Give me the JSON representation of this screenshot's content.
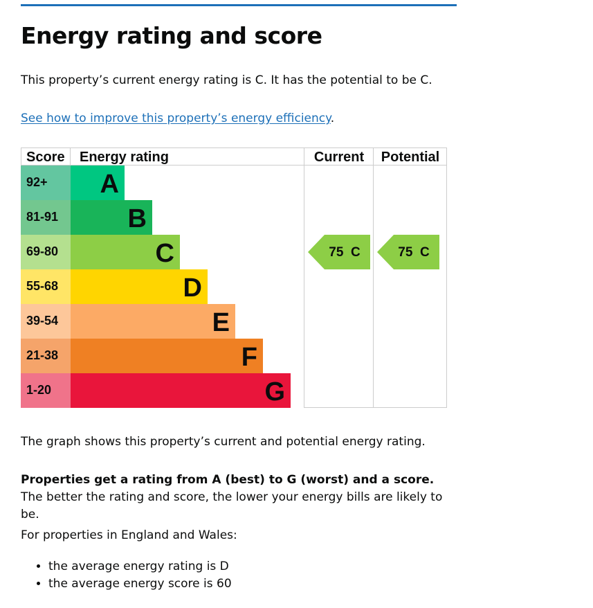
{
  "page": {
    "title": "Energy rating and score",
    "intro": "This property’s current energy rating is C. It has the potential to be C.",
    "improve_link": "See how to improve this property’s energy efficiency",
    "improve_link_suffix": ".",
    "graph_caption": "The graph shows this property’s current and potential energy rating.",
    "rating_bold": "Properties get a rating from A (best) to G (worst) and a score.",
    "rating_rest": " The better the rating and score, the lower your energy bills are likely to be.",
    "england_wales": "For properties in England and Wales:",
    "bullets": [
      "the average energy rating is D",
      "the average energy score is 60"
    ]
  },
  "chart_data": {
    "type": "table",
    "headers": {
      "score": "Score",
      "rating": "Energy rating",
      "current": "Current",
      "potential": "Potential"
    },
    "bands": [
      {
        "letter": "A",
        "range": "92+",
        "color": "#00c781",
        "score_bg": "#63c6a0"
      },
      {
        "letter": "B",
        "range": "81-91",
        "color": "#19b459",
        "score_bg": "#73c78f"
      },
      {
        "letter": "C",
        "range": "69-80",
        "color": "#8dce46",
        "score_bg": "#b4e08f"
      },
      {
        "letter": "D",
        "range": "55-68",
        "color": "#ffd500",
        "score_bg": "#ffe566"
      },
      {
        "letter": "E",
        "range": "39-54",
        "color": "#fcaa65",
        "score_bg": "#fdc79a"
      },
      {
        "letter": "F",
        "range": "21-38",
        "color": "#ef8023",
        "score_bg": "#f5a46a"
      },
      {
        "letter": "G",
        "range": "1-20",
        "color": "#e9153b",
        "score_bg": "#f0738a"
      }
    ],
    "current": {
      "score": 75,
      "letter": "C",
      "label": "75  C"
    },
    "potential": {
      "score": 75,
      "letter": "C",
      "label": "75  C"
    },
    "arrow_color": "#8dce46",
    "grid_color": "#cccccc"
  }
}
